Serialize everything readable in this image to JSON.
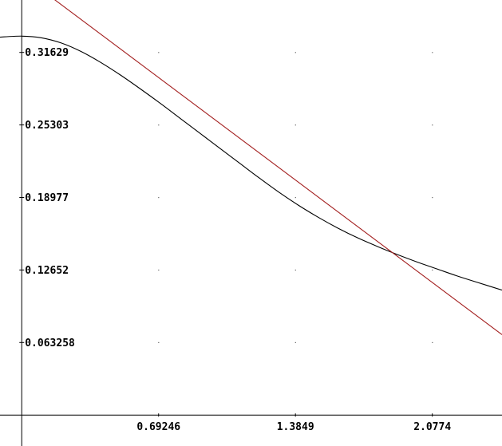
{
  "chart_data": {
    "type": "line",
    "title": "",
    "xlabel": "",
    "ylabel": "",
    "xlim": [
      -0.11,
      2.43
    ],
    "ylim": [
      -0.027,
      0.362
    ],
    "grid": "dotted points at tick intersections",
    "x_ticks": [
      {
        "value": 0.69246,
        "label": "0.69246"
      },
      {
        "value": 1.3849,
        "label": "1.3849"
      },
      {
        "value": 2.0774,
        "label": "2.0774"
      }
    ],
    "y_ticks": [
      {
        "value": 0.31629,
        "label": "0.31629"
      },
      {
        "value": 0.25303,
        "label": "0.25303"
      },
      {
        "value": 0.18977,
        "label": "0.18977"
      },
      {
        "value": 0.12652,
        "label": "0.12652"
      },
      {
        "value": 0.063258,
        "label": "0.063258"
      }
    ],
    "series": [
      {
        "color": "#000000",
        "x": [
          -0.11,
          0.0,
          0.1,
          0.2,
          0.3,
          0.4,
          0.5,
          0.6,
          0.7,
          0.8,
          0.9,
          1.0,
          1.1,
          1.2,
          1.3,
          1.4,
          1.5,
          1.6,
          1.7,
          1.8,
          1.9,
          2.0,
          2.1,
          2.2,
          2.3,
          2.43
        ],
        "y": [
          0.3296,
          0.3305,
          0.329,
          0.3245,
          0.3171,
          0.3075,
          0.2965,
          0.2845,
          0.272,
          0.259,
          0.246,
          0.233,
          0.22,
          0.207,
          0.1945,
          0.183,
          0.1725,
          0.163,
          0.1545,
          0.147,
          0.14,
          0.1335,
          0.1275,
          0.1215,
          0.116,
          0.109
        ]
      },
      {
        "color": "#a31f1f",
        "x": [
          0.16,
          2.43
        ],
        "y": [
          0.3631,
          0.0701
        ]
      }
    ]
  }
}
